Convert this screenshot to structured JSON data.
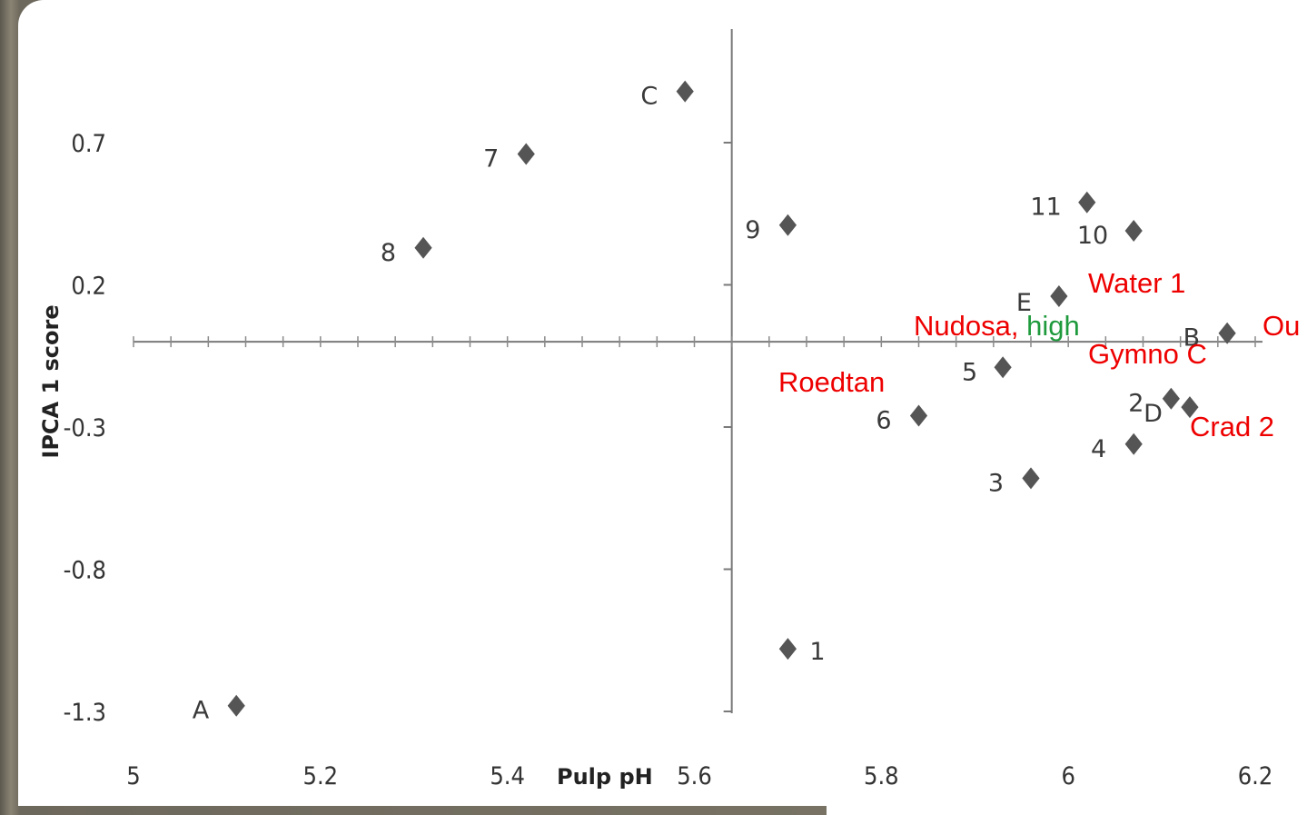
{
  "chart_data": {
    "type": "scatter",
    "xlabel": "Pulp pH",
    "ylabel": "IPCA 1 score",
    "xlim": [
      5,
      6.2
    ],
    "ylim": [
      -1.3,
      0.9
    ],
    "x_ticks": [
      "5",
      "5.2",
      "5.4",
      "5.6",
      "5.8",
      "6",
      "6.2"
    ],
    "y_ticks": [
      "0.7",
      "0.2",
      "-0.3",
      "-0.8",
      "-1.3"
    ],
    "marker_color": "#555555",
    "annotation_color": "#ee0000",
    "highlight_color": "#1e9a3c",
    "points": [
      {
        "label": "C",
        "x": 5.59,
        "y": 0.88
      },
      {
        "label": "7",
        "x": 5.42,
        "y": 0.66
      },
      {
        "label": "8",
        "x": 5.31,
        "y": 0.33
      },
      {
        "label": "9",
        "x": 5.7,
        "y": 0.41
      },
      {
        "label": "11",
        "x": 6.02,
        "y": 0.49
      },
      {
        "label": "10",
        "x": 6.07,
        "y": 0.39
      },
      {
        "label": "E",
        "x": 5.99,
        "y": 0.16
      },
      {
        "label": "B",
        "x": 6.17,
        "y": 0.03
      },
      {
        "label": "5",
        "x": 5.93,
        "y": -0.09
      },
      {
        "label": "2",
        "x": 6.11,
        "y": -0.2
      },
      {
        "label": "D",
        "x": 6.13,
        "y": -0.23
      },
      {
        "label": "6",
        "x": 5.84,
        "y": -0.26
      },
      {
        "label": "4",
        "x": 6.07,
        "y": -0.36
      },
      {
        "label": "3",
        "x": 5.96,
        "y": -0.48
      },
      {
        "label": "1",
        "x": 5.7,
        "y": -1.08
      },
      {
        "label": "A",
        "x": 5.11,
        "y": -1.28
      }
    ],
    "annotations": [
      {
        "text": "Water 1"
      },
      {
        "text": "Nudosa,",
        "highlight": "high"
      },
      {
        "text": "Ou"
      },
      {
        "text": "Gymno C"
      },
      {
        "text": "Roedtan"
      },
      {
        "text": "Crad 2"
      }
    ]
  }
}
